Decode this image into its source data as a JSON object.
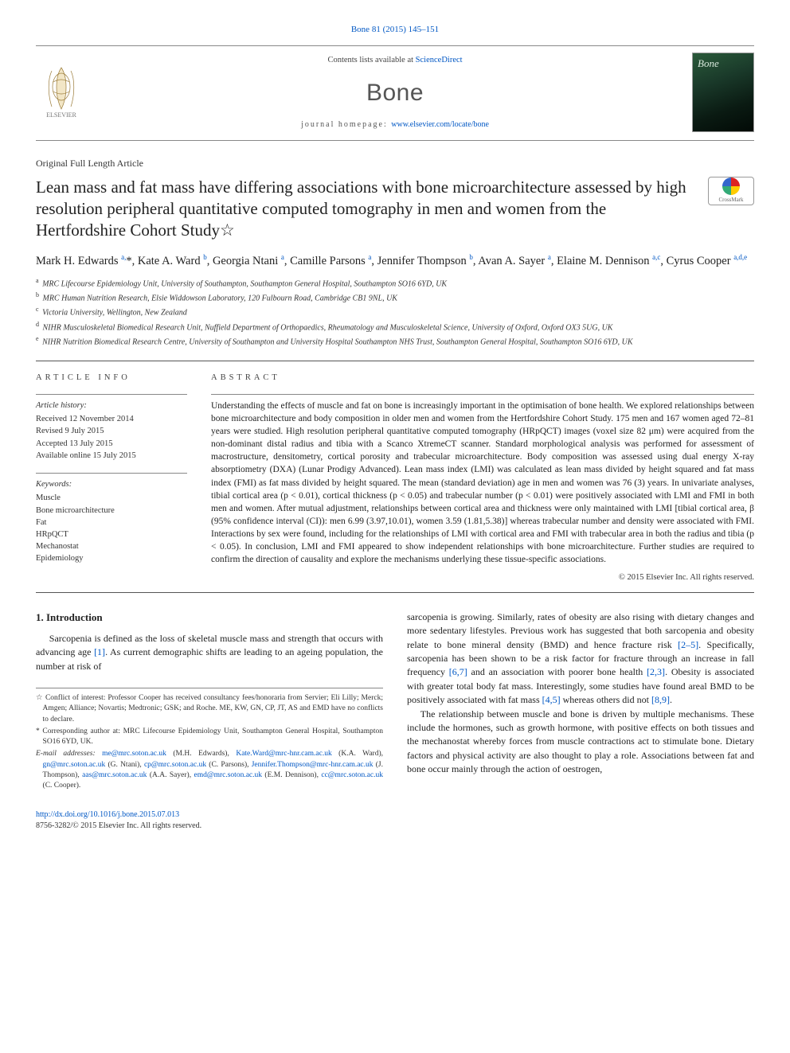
{
  "top_citation_link": "Bone 81 (2015) 145–151",
  "masthead": {
    "sd_prefix": "Contents lists available at ",
    "sd_link": "ScienceDirect",
    "journal": "Bone",
    "homepage_prefix": "journal homepage: ",
    "homepage_url": "www.elsevier.com/locate/bone"
  },
  "article_type": "Original Full Length Article",
  "title": "Lean mass and fat mass have differing associations with bone microarchitecture assessed by high resolution peripheral quantitative computed tomography in men and women from the Hertfordshire Cohort Study☆",
  "crossmark_label": "CrossMark",
  "authors_html": "Mark H. Edwards <sup>a,</sup><span class='star'>*</span>, Kate A. Ward <sup>b</sup>, Georgia Ntani <sup>a</sup>, Camille Parsons <sup>a</sup>, Jennifer Thompson <sup>b</sup>, Avan A. Sayer <sup>a</sup>, Elaine M. Dennison <sup>a,c</sup>, Cyrus Cooper <sup>a,d,e</sup>",
  "affiliations": [
    {
      "key": "a",
      "text": "MRC Lifecourse Epidemiology Unit, University of Southampton, Southampton General Hospital, Southampton SO16 6YD, UK"
    },
    {
      "key": "b",
      "text": "MRC Human Nutrition Research, Elsie Widdowson Laboratory, 120 Fulbourn Road, Cambridge CB1 9NL, UK"
    },
    {
      "key": "c",
      "text": "Victoria University, Wellington, New Zealand"
    },
    {
      "key": "d",
      "text": "NIHR Musculoskeletal Biomedical Research Unit, Nuffield Department of Orthopaedics, Rheumatology and Musculoskeletal Science, University of Oxford, Oxford OX3 5UG, UK"
    },
    {
      "key": "e",
      "text": "NIHR Nutrition Biomedical Research Centre, University of Southampton and University Hospital Southampton NHS Trust, Southampton General Hospital, Southampton SO16 6YD, UK"
    }
  ],
  "info": {
    "label": "article info",
    "history_head": "Article history:",
    "history": [
      "Received 12 November 2014",
      "Revised 9 July 2015",
      "Accepted 13 July 2015",
      "Available online 15 July 2015"
    ],
    "keywords_head": "Keywords:",
    "keywords": [
      "Muscle",
      "Bone microarchitecture",
      "Fat",
      "HRpQCT",
      "Mechanostat",
      "Epidemiology"
    ]
  },
  "abstract": {
    "label": "abstract",
    "text": "Understanding the effects of muscle and fat on bone is increasingly important in the optimisation of bone health. We explored relationships between bone microarchitecture and body composition in older men and women from the Hertfordshire Cohort Study. 175 men and 167 women aged 72–81 years were studied. High resolution peripheral quantitative computed tomography (HRpQCT) images (voxel size 82 μm) were acquired from the non-dominant distal radius and tibia with a Scanco XtremeCT scanner. Standard morphological analysis was performed for assessment of macrostructure, densitometry, cortical porosity and trabecular microarchitecture. Body composition was assessed using dual energy X-ray absorptiometry (DXA) (Lunar Prodigy Advanced). Lean mass index (LMI) was calculated as lean mass divided by height squared and fat mass index (FMI) as fat mass divided by height squared. The mean (standard deviation) age in men and women was 76 (3) years. In univariate analyses, tibial cortical area (p < 0.01), cortical thickness (p < 0.05) and trabecular number (p < 0.01) were positively associated with LMI and FMI in both men and women. After mutual adjustment, relationships between cortical area and thickness were only maintained with LMI [tibial cortical area, β (95% confidence interval (CI)): men 6.99 (3.97,10.01), women 3.59 (1.81,5.38)] whereas trabecular number and density were associated with FMI. Interactions by sex were found, including for the relationships of LMI with cortical area and FMI with trabecular area in both the radius and tibia (p < 0.05). In conclusion, LMI and FMI appeared to show independent relationships with bone microarchitecture. Further studies are required to confirm the direction of causality and explore the mechanisms underlying these tissue-specific associations.",
    "copyright": "© 2015 Elsevier Inc. All rights reserved."
  },
  "intro": {
    "heading": "1. Introduction",
    "left_p1": "Sarcopenia is defined as the loss of skeletal muscle mass and strength that occurs with advancing age [1]. As current demographic shifts are leading to an ageing population, the number at risk of",
    "right_p1": "sarcopenia is growing. Similarly, rates of obesity are also rising with dietary changes and more sedentary lifestyles. Previous work has suggested that both sarcopenia and obesity relate to bone mineral density (BMD) and hence fracture risk [2–5]. Specifically, sarcopenia has been shown to be a risk factor for fracture through an increase in fall frequency [6,7] and an association with poorer bone health [2,3]. Obesity is associated with greater total body fat mass. Interestingly, some studies have found areal BMD to be positively associated with fat mass [4,5] whereas others did not [8,9].",
    "right_p2": "The relationship between muscle and bone is driven by multiple mechanisms. These include the hormones, such as growth hormone, with positive effects on both tissues and the mechanostat whereby forces from muscle contractions act to stimulate bone. Dietary factors and physical activity are also thought to play a role. Associations between fat and bone occur mainly through the action of oestrogen,"
  },
  "footnotes": {
    "coi": "☆ Conflict of interest: Professor Cooper has received consultancy fees/honoraria from Servier; Eli Lilly; Merck; Amgen; Alliance; Novartis; Medtronic; GSK; and Roche. ME, KW, GN, CP, JT, AS and EMD have no conflicts to declare.",
    "corr": "* Corresponding author at: MRC Lifecourse Epidemiology Unit, Southampton General Hospital, Southampton SO16 6YD, UK.",
    "emails_label": "E-mail addresses:",
    "emails": [
      {
        "addr": "me@mrc.soton.ac.uk",
        "who": "(M.H. Edwards)"
      },
      {
        "addr": "Kate.Ward@mrc-hnr.cam.ac.uk",
        "who": "(K.A. Ward)"
      },
      {
        "addr": "gn@mrc.soton.ac.uk",
        "who": "(G. Ntani)"
      },
      {
        "addr": "cp@mrc.soton.ac.uk",
        "who": "(C. Parsons)"
      },
      {
        "addr": "Jennifer.Thompson@mrc-hnr.cam.ac.uk",
        "who": "(J. Thompson)"
      },
      {
        "addr": "aas@mrc.soton.ac.uk",
        "who": "(A.A. Sayer)"
      },
      {
        "addr": "emd@mrc.soton.ac.uk",
        "who": "(E.M. Dennison)"
      },
      {
        "addr": "cc@mrc.soton.ac.uk",
        "who": "(C. Cooper)"
      }
    ]
  },
  "bottom": {
    "doi": "http://dx.doi.org/10.1016/j.bone.2015.07.013",
    "issn_copy": "8756-3282/© 2015 Elsevier Inc. All rights reserved."
  },
  "colors": {
    "link": "#0057c4",
    "text": "#222222",
    "rule": "#555555"
  }
}
